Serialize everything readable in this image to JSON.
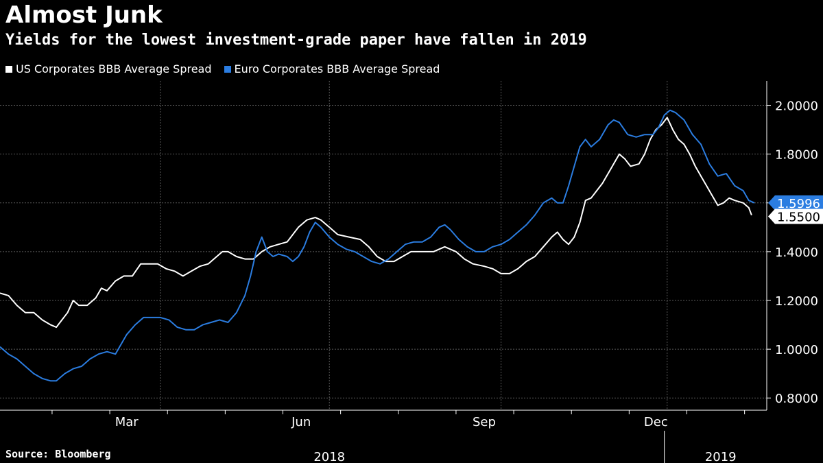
{
  "header": {
    "title": "Almost Junk",
    "subtitle": "Yields for the lowest investment-grade paper have fallen in 2019"
  },
  "footer": {
    "source": "Source: Bloomberg"
  },
  "chart_data": {
    "type": "line",
    "title": "Almost Junk",
    "subtitle": "Yields for the lowest investment-grade paper have fallen in 2019",
    "ylim": [
      0.75,
      2.1
    ],
    "yticks": [
      0.8,
      1.0,
      1.2,
      1.4,
      1.6,
      1.8,
      2.0
    ],
    "ytick_labels": [
      "0.8000",
      "1.0000",
      "1.2000",
      "1.4000",
      "1.6000",
      "1.8000",
      "2.0000"
    ],
    "xlim": [
      0,
      268
    ],
    "x_unit": "trading days from 2018-01-01",
    "month_labels": [
      {
        "label": "Mar",
        "x": 45
      },
      {
        "label": "Jun",
        "x": 107
      },
      {
        "label": "Sep",
        "x": 172
      },
      {
        "label": "Dec",
        "x": 233
      }
    ],
    "year_labels": [
      {
        "label": "2018",
        "x": 117
      },
      {
        "label": "2019",
        "x": 256
      }
    ],
    "year_separator_x": 236,
    "grid": true,
    "legend_position": "top-left",
    "series": [
      {
        "name": "US Corporates BBB Average Spread",
        "color": "#ffffff",
        "last_value_label": "1.5500",
        "points": [
          [
            0,
            1.23
          ],
          [
            3,
            1.22
          ],
          [
            6,
            1.18
          ],
          [
            9,
            1.15
          ],
          [
            12,
            1.15
          ],
          [
            15,
            1.12
          ],
          [
            18,
            1.1
          ],
          [
            20,
            1.09
          ],
          [
            22,
            1.12
          ],
          [
            24,
            1.15
          ],
          [
            26,
            1.2
          ],
          [
            28,
            1.18
          ],
          [
            31,
            1.18
          ],
          [
            34,
            1.21
          ],
          [
            36,
            1.25
          ],
          [
            38,
            1.24
          ],
          [
            41,
            1.28
          ],
          [
            44,
            1.3
          ],
          [
            47,
            1.3
          ],
          [
            50,
            1.35
          ],
          [
            53,
            1.35
          ],
          [
            56,
            1.35
          ],
          [
            59,
            1.33
          ],
          [
            62,
            1.32
          ],
          [
            65,
            1.3
          ],
          [
            68,
            1.32
          ],
          [
            71,
            1.34
          ],
          [
            74,
            1.35
          ],
          [
            77,
            1.38
          ],
          [
            79,
            1.4
          ],
          [
            81,
            1.4
          ],
          [
            84,
            1.38
          ],
          [
            87,
            1.37
          ],
          [
            90,
            1.37
          ],
          [
            93,
            1.4
          ],
          [
            96,
            1.42
          ],
          [
            99,
            1.43
          ],
          [
            102,
            1.44
          ],
          [
            104,
            1.47
          ],
          [
            106,
            1.5
          ],
          [
            109,
            1.53
          ],
          [
            112,
            1.54
          ],
          [
            114,
            1.53
          ],
          [
            117,
            1.5
          ],
          [
            120,
            1.47
          ],
          [
            124,
            1.46
          ],
          [
            128,
            1.45
          ],
          [
            131,
            1.42
          ],
          [
            134,
            1.38
          ],
          [
            137,
            1.36
          ],
          [
            140,
            1.36
          ],
          [
            143,
            1.38
          ],
          [
            146,
            1.4
          ],
          [
            150,
            1.4
          ],
          [
            154,
            1.4
          ],
          [
            158,
            1.42
          ],
          [
            162,
            1.4
          ],
          [
            165,
            1.37
          ],
          [
            168,
            1.35
          ],
          [
            172,
            1.34
          ],
          [
            175,
            1.33
          ],
          [
            178,
            1.31
          ],
          [
            181,
            1.31
          ],
          [
            184,
            1.33
          ],
          [
            187,
            1.36
          ],
          [
            190,
            1.38
          ],
          [
            193,
            1.42
          ],
          [
            196,
            1.46
          ],
          [
            198,
            1.48
          ],
          [
            200,
            1.45
          ],
          [
            202,
            1.43
          ],
          [
            204,
            1.46
          ],
          [
            206,
            1.52
          ],
          [
            208,
            1.61
          ],
          [
            210,
            1.62
          ],
          [
            212,
            1.65
          ],
          [
            214,
            1.68
          ],
          [
            216,
            1.72
          ],
          [
            218,
            1.76
          ],
          [
            220,
            1.8
          ],
          [
            222,
            1.78
          ],
          [
            224,
            1.75
          ],
          [
            227,
            1.76
          ],
          [
            229,
            1.8
          ],
          [
            231,
            1.86
          ],
          [
            233,
            1.9
          ],
          [
            235,
            1.92
          ],
          [
            237,
            1.95
          ],
          [
            239,
            1.9
          ],
          [
            241,
            1.86
          ],
          [
            243,
            1.84
          ],
          [
            245,
            1.8
          ],
          [
            247,
            1.75
          ],
          [
            249,
            1.71
          ],
          [
            251,
            1.67
          ],
          [
            253,
            1.63
          ],
          [
            255,
            1.59
          ],
          [
            257,
            1.6
          ],
          [
            259,
            1.62
          ],
          [
            261,
            1.61
          ],
          [
            264,
            1.6
          ],
          [
            266,
            1.58
          ],
          [
            267,
            1.55
          ]
        ]
      },
      {
        "name": "Euro Corporates BBB Average Spread",
        "color": "#2b7de1",
        "last_value_label": "1.5996",
        "points": [
          [
            0,
            1.01
          ],
          [
            3,
            0.98
          ],
          [
            6,
            0.96
          ],
          [
            9,
            0.93
          ],
          [
            12,
            0.9
          ],
          [
            15,
            0.88
          ],
          [
            18,
            0.87
          ],
          [
            20,
            0.87
          ],
          [
            23,
            0.9
          ],
          [
            26,
            0.92
          ],
          [
            29,
            0.93
          ],
          [
            32,
            0.96
          ],
          [
            35,
            0.98
          ],
          [
            38,
            0.99
          ],
          [
            41,
            0.98
          ],
          [
            43,
            1.02
          ],
          [
            45,
            1.06
          ],
          [
            48,
            1.1
          ],
          [
            51,
            1.13
          ],
          [
            54,
            1.13
          ],
          [
            57,
            1.13
          ],
          [
            60,
            1.12
          ],
          [
            63,
            1.09
          ],
          [
            66,
            1.08
          ],
          [
            69,
            1.08
          ],
          [
            72,
            1.1
          ],
          [
            75,
            1.11
          ],
          [
            78,
            1.12
          ],
          [
            81,
            1.11
          ],
          [
            84,
            1.15
          ],
          [
            87,
            1.22
          ],
          [
            89,
            1.3
          ],
          [
            91,
            1.4
          ],
          [
            93,
            1.46
          ],
          [
            95,
            1.4
          ],
          [
            97,
            1.38
          ],
          [
            99,
            1.39
          ],
          [
            102,
            1.38
          ],
          [
            104,
            1.36
          ],
          [
            106,
            1.38
          ],
          [
            108,
            1.42
          ],
          [
            110,
            1.48
          ],
          [
            112,
            1.52
          ],
          [
            114,
            1.5
          ],
          [
            117,
            1.46
          ],
          [
            120,
            1.43
          ],
          [
            123,
            1.41
          ],
          [
            126,
            1.4
          ],
          [
            129,
            1.38
          ],
          [
            132,
            1.36
          ],
          [
            135,
            1.35
          ],
          [
            138,
            1.37
          ],
          [
            141,
            1.4
          ],
          [
            144,
            1.43
          ],
          [
            147,
            1.44
          ],
          [
            150,
            1.44
          ],
          [
            153,
            1.46
          ],
          [
            156,
            1.5
          ],
          [
            158,
            1.51
          ],
          [
            160,
            1.49
          ],
          [
            163,
            1.45
          ],
          [
            166,
            1.42
          ],
          [
            169,
            1.4
          ],
          [
            172,
            1.4
          ],
          [
            175,
            1.42
          ],
          [
            178,
            1.43
          ],
          [
            181,
            1.45
          ],
          [
            184,
            1.48
          ],
          [
            187,
            1.51
          ],
          [
            190,
            1.55
          ],
          [
            193,
            1.6
          ],
          [
            196,
            1.62
          ],
          [
            198,
            1.6
          ],
          [
            200,
            1.6
          ],
          [
            202,
            1.67
          ],
          [
            204,
            1.75
          ],
          [
            206,
            1.83
          ],
          [
            208,
            1.86
          ],
          [
            210,
            1.83
          ],
          [
            213,
            1.86
          ],
          [
            216,
            1.92
          ],
          [
            218,
            1.94
          ],
          [
            220,
            1.93
          ],
          [
            223,
            1.88
          ],
          [
            226,
            1.87
          ],
          [
            229,
            1.88
          ],
          [
            232,
            1.88
          ],
          [
            234,
            1.91
          ],
          [
            236,
            1.96
          ],
          [
            238,
            1.98
          ],
          [
            240,
            1.97
          ],
          [
            243,
            1.94
          ],
          [
            246,
            1.88
          ],
          [
            249,
            1.84
          ],
          [
            252,
            1.76
          ],
          [
            255,
            1.71
          ],
          [
            258,
            1.72
          ],
          [
            261,
            1.67
          ],
          [
            264,
            1.65
          ],
          [
            266,
            1.61
          ],
          [
            268,
            1.6
          ]
        ]
      }
    ]
  }
}
